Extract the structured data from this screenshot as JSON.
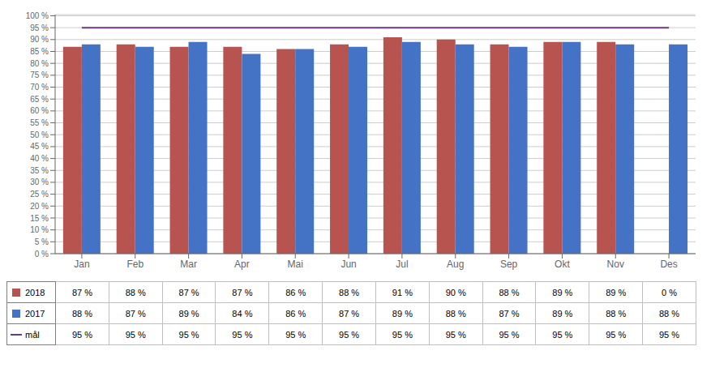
{
  "chart_data": {
    "type": "bar",
    "categories": [
      "Jan",
      "Feb",
      "Mar",
      "Apr",
      "Mai",
      "Jun",
      "Jul",
      "Aug",
      "Sep",
      "Okt",
      "Nov",
      "Des"
    ],
    "series": [
      {
        "name": "2018",
        "color": "#b85450",
        "type": "bar",
        "values": [
          0.87,
          0.88,
          0.87,
          0.87,
          0.86,
          0.88,
          0.91,
          0.9,
          0.88,
          0.89,
          0.89,
          0.0
        ],
        "value_labels": [
          "87 %",
          "88 %",
          "87 %",
          "87 %",
          "86 %",
          "88 %",
          "91 %",
          "90 %",
          "88 %",
          "89 %",
          "89 %",
          "0 %"
        ]
      },
      {
        "name": "2017",
        "color": "#4472c4",
        "type": "bar",
        "values": [
          0.88,
          0.87,
          0.89,
          0.84,
          0.86,
          0.87,
          0.89,
          0.88,
          0.87,
          0.89,
          0.88,
          0.88
        ],
        "value_labels": [
          "88 %",
          "87 %",
          "89 %",
          "84 %",
          "86 %",
          "87 %",
          "89 %",
          "88 %",
          "87 %",
          "89 %",
          "88 %",
          "88 %"
        ]
      },
      {
        "name": "mål",
        "color": "#6b3a7d",
        "type": "line",
        "values": [
          0.95,
          0.95,
          0.95,
          0.95,
          0.95,
          0.95,
          0.95,
          0.95,
          0.95,
          0.95,
          0.95,
          0.95
        ],
        "value_labels": [
          "95 %",
          "95 %",
          "95 %",
          "95 %",
          "95 %",
          "95 %",
          "95 %",
          "95 %",
          "95 %",
          "95 %",
          "95 %",
          "95 %"
        ]
      }
    ],
    "ylim": [
      0,
      1.005
    ],
    "yticks": [
      {
        "value": 0,
        "label": "0 %"
      },
      {
        "value": 0.05,
        "label": "5 %"
      },
      {
        "value": 0.1,
        "label": "10 %"
      },
      {
        "value": 0.15,
        "label": "15 %"
      },
      {
        "value": 0.2,
        "label": "20 %"
      },
      {
        "value": 0.25,
        "label": "25 %"
      },
      {
        "value": 0.3,
        "label": "30 %"
      },
      {
        "value": 0.35,
        "label": "35 %"
      },
      {
        "value": 0.4,
        "label": "40 %"
      },
      {
        "value": 0.45,
        "label": "45 %"
      },
      {
        "value": 0.5,
        "label": "50 %"
      },
      {
        "value": 0.55,
        "label": "55 %"
      },
      {
        "value": 0.6,
        "label": "60 %"
      },
      {
        "value": 0.65,
        "label": "65 %"
      },
      {
        "value": 0.7,
        "label": "70 %"
      },
      {
        "value": 0.75,
        "label": "75 %"
      },
      {
        "value": 0.8,
        "label": "80 %"
      },
      {
        "value": 0.85,
        "label": "85 %"
      },
      {
        "value": 0.9,
        "label": "90 %"
      },
      {
        "value": 0.95,
        "label": "95 %"
      },
      {
        "value": 1.0,
        "label": "100 %"
      }
    ],
    "grid": true
  }
}
